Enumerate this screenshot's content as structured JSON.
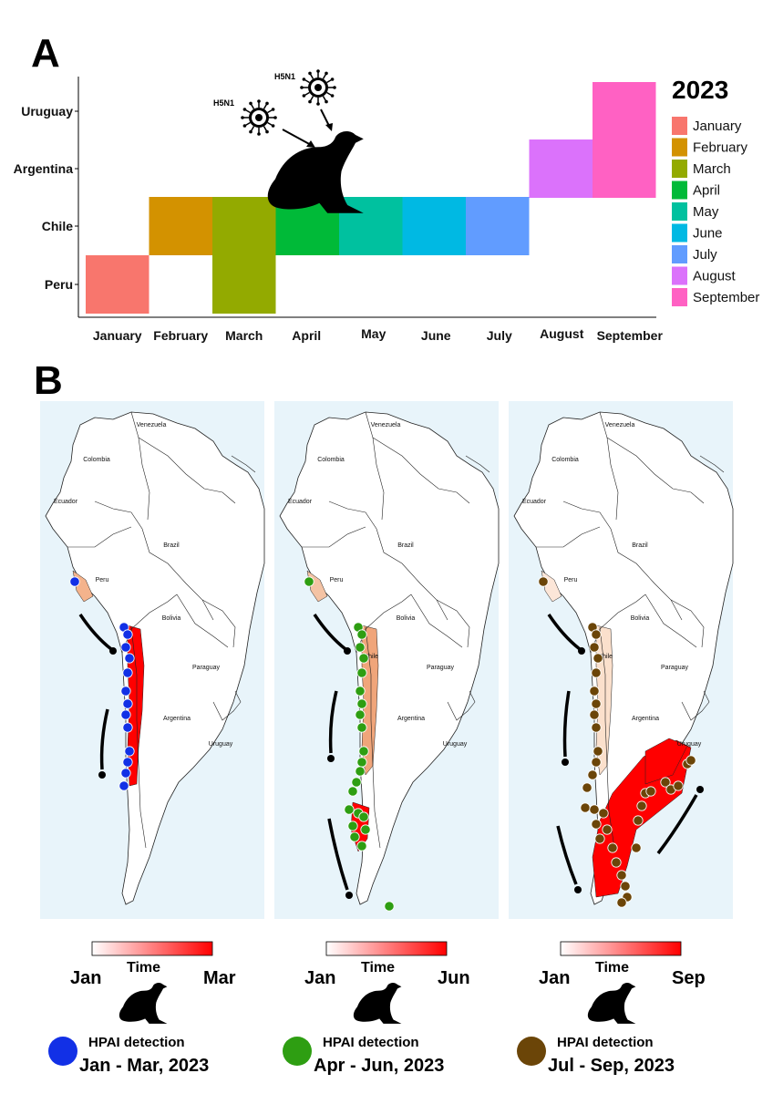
{
  "panel_a_label": "A",
  "panel_b_label": "B",
  "virus_labels": [
    "H5N1",
    "H5N1"
  ],
  "chart_data": {
    "type": "heatmap",
    "title": "",
    "x": [
      "January",
      "February",
      "March",
      "April",
      "May",
      "June",
      "July",
      "August",
      "September"
    ],
    "y": [
      "Peru",
      "Chile",
      "Argentina",
      "Uruguay"
    ],
    "legend": {
      "title": "2023",
      "placement": "right",
      "entries": [
        {
          "label": "January",
          "color": "#F8766D"
        },
        {
          "label": "February",
          "color": "#D39200"
        },
        {
          "label": "March",
          "color": "#93AA00"
        },
        {
          "label": "April",
          "color": "#00BA38"
        },
        {
          "label": "May",
          "color": "#00C19F"
        },
        {
          "label": "June",
          "color": "#00B9E3"
        },
        {
          "label": "July",
          "color": "#619CFF"
        },
        {
          "label": "August",
          "color": "#DB72FB"
        },
        {
          "label": "September",
          "color": "#FF61C3"
        }
      ]
    },
    "cells": [
      {
        "x": "January",
        "y": "Peru"
      },
      {
        "x": "February",
        "y": "Chile"
      },
      {
        "x": "March",
        "y": "Peru"
      },
      {
        "x": "March",
        "y": "Chile"
      },
      {
        "x": "April",
        "y": "Chile"
      },
      {
        "x": "May",
        "y": "Chile"
      },
      {
        "x": "June",
        "y": "Chile"
      },
      {
        "x": "July",
        "y": "Chile"
      },
      {
        "x": "August",
        "y": "Argentina"
      },
      {
        "x": "September",
        "y": "Argentina"
      },
      {
        "x": "September",
        "y": "Uruguay"
      }
    ]
  },
  "maps": [
    {
      "period_start": "Jan",
      "period_end": "Mar",
      "time_label": "Time",
      "detection_label": "HPAI detection",
      "detection_period": "Jan - Mar, 2023",
      "dot_color": "#1230E6",
      "grad_end_color": "#FF0000",
      "country_labels": [
        "Venezuela",
        "Colombia",
        "Ecuador",
        "Brazil",
        "Peru",
        "Bolivia",
        "Paraguay",
        "Argentina",
        "Uruguay"
      ]
    },
    {
      "period_start": "Jan",
      "period_end": "Jun",
      "time_label": "Time",
      "detection_label": "HPAI detection",
      "detection_period": "Apr - Jun, 2023",
      "dot_color": "#2E9E12",
      "grad_end_color": "#FF0000",
      "country_labels": [
        "Venezuela",
        "Colombia",
        "Ecuador",
        "Brazil",
        "Peru",
        "Bolivia",
        "Chile",
        "Paraguay",
        "Argentina",
        "Uruguay"
      ]
    },
    {
      "period_start": "Jan",
      "period_end": "Sep",
      "time_label": "Time",
      "detection_label": "HPAI detection",
      "detection_period": "Jul - Sep, 2023",
      "dot_color": "#6B4508",
      "grad_end_color": "#FF0000",
      "country_labels": [
        "Venezuela",
        "Colombia",
        "Ecuador",
        "Brazil",
        "Peru",
        "Bolivia",
        "Chile",
        "Paraguay",
        "Argentina",
        "Uruguay"
      ]
    }
  ]
}
